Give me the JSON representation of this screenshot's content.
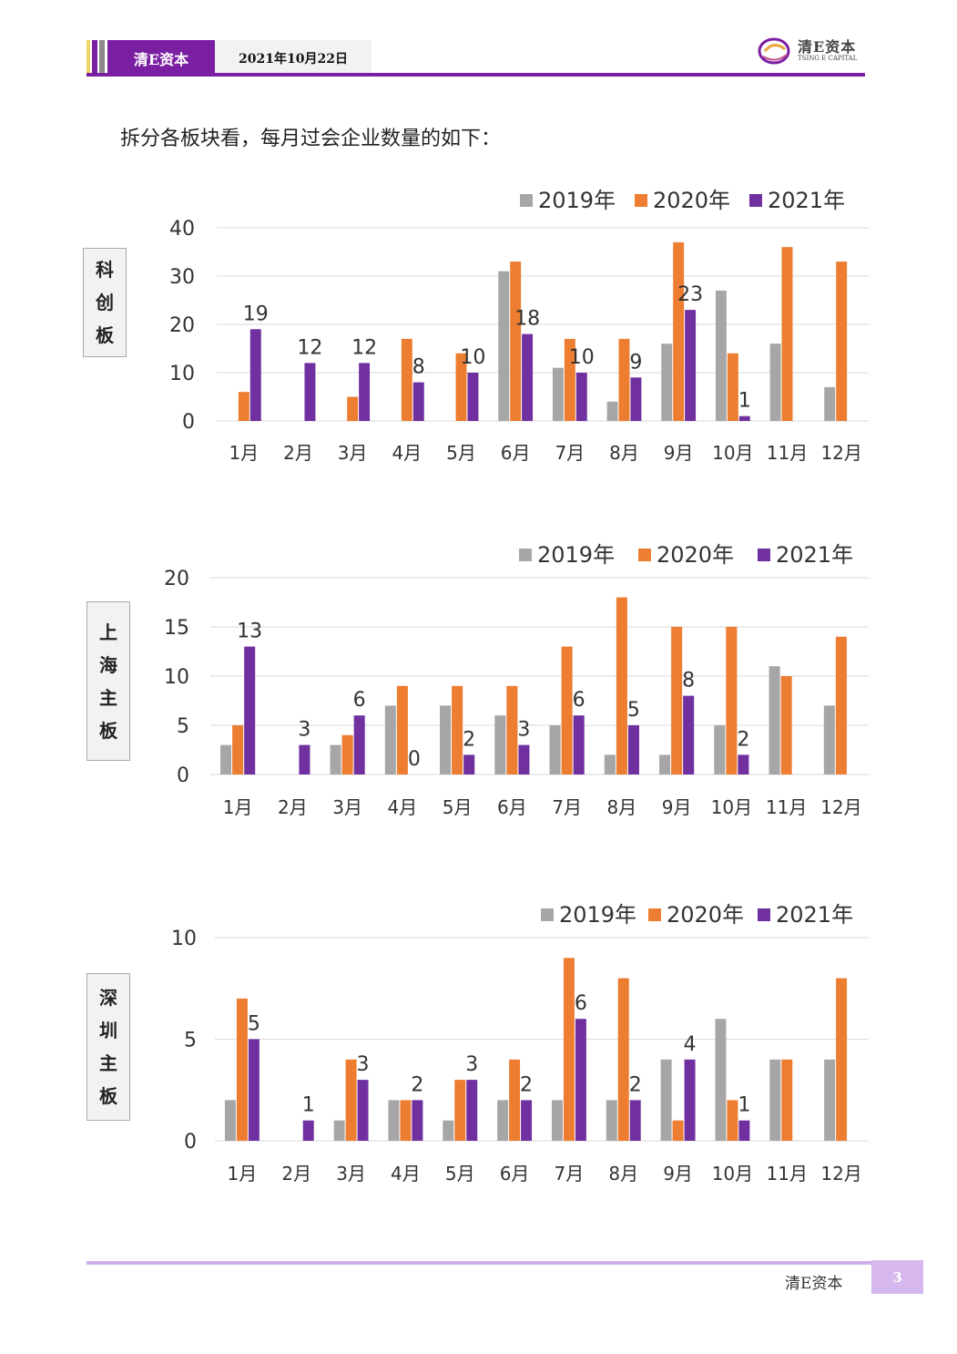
{
  "header": {
    "brand": "清E资本",
    "date": "2021年10月22日",
    "logo_main": "清E资本",
    "logo_sub": "TSING E CAPITAL",
    "accent_color": "#7b1fa2"
  },
  "intro": "拆分各板块看，每月过会企业数量的如下：",
  "colors": {
    "2019年": "#a6a6a6",
    "2020年": "#ed7d31",
    "2021年": "#7030a0"
  },
  "chart_data": [
    {
      "type": "bar",
      "board": "科创板",
      "categories": [
        "1月",
        "2月",
        "3月",
        "4月",
        "5月",
        "6月",
        "7月",
        "8月",
        "9月",
        "10月",
        "11月",
        "12月"
      ],
      "series": [
        {
          "name": "2019年",
          "values": [
            0,
            0,
            0,
            0,
            0,
            31,
            11,
            4,
            16,
            27,
            16,
            7
          ]
        },
        {
          "name": "2020年",
          "values": [
            6,
            0,
            5,
            17,
            14,
            33,
            17,
            17,
            37,
            14,
            36,
            33
          ]
        },
        {
          "name": "2021年",
          "values": [
            19,
            12,
            12,
            8,
            10,
            18,
            10,
            9,
            23,
            1,
            null,
            null
          ]
        }
      ],
      "data_labels_series": "2021年",
      "yticks": [
        0,
        10,
        20,
        30,
        40
      ],
      "ylim": [
        0,
        40
      ],
      "legend": "top-right",
      "grid": true
    },
    {
      "type": "bar",
      "board": "上海主板",
      "categories": [
        "1月",
        "2月",
        "3月",
        "4月",
        "5月",
        "6月",
        "7月",
        "8月",
        "9月",
        "10月",
        "11月",
        "12月"
      ],
      "series": [
        {
          "name": "2019年",
          "values": [
            3,
            0,
            3,
            7,
            7,
            6,
            5,
            2,
            2,
            5,
            11,
            7
          ]
        },
        {
          "name": "2020年",
          "values": [
            5,
            0,
            4,
            9,
            9,
            9,
            13,
            18,
            15,
            15,
            10,
            14
          ]
        },
        {
          "name": "2021年",
          "values": [
            13,
            3,
            6,
            0,
            2,
            3,
            6,
            5,
            8,
            2,
            null,
            null
          ]
        }
      ],
      "data_labels_series": "2021年",
      "yticks": [
        0,
        5,
        10,
        15,
        20
      ],
      "ylim": [
        0,
        20
      ],
      "legend": "top-right",
      "grid": true
    },
    {
      "type": "bar",
      "board": "深圳主板",
      "categories": [
        "1月",
        "2月",
        "3月",
        "4月",
        "5月",
        "6月",
        "7月",
        "8月",
        "9月",
        "10月",
        "11月",
        "12月"
      ],
      "series": [
        {
          "name": "2019年",
          "values": [
            2,
            0,
            1,
            2,
            1,
            2,
            2,
            2,
            4,
            6,
            4,
            4
          ]
        },
        {
          "name": "2020年",
          "values": [
            7,
            0,
            4,
            2,
            3,
            4,
            9,
            8,
            1,
            2,
            4,
            8
          ]
        },
        {
          "name": "2021年",
          "values": [
            5,
            1,
            3,
            2,
            3,
            2,
            6,
            2,
            4,
            1,
            null,
            null
          ]
        }
      ],
      "data_labels_series": "2021年",
      "yticks": [
        0,
        5,
        10
      ],
      "ylim": [
        0,
        10
      ],
      "legend": "top-right",
      "grid": true
    }
  ],
  "footer": {
    "brand": "清E资本",
    "page": "3"
  }
}
